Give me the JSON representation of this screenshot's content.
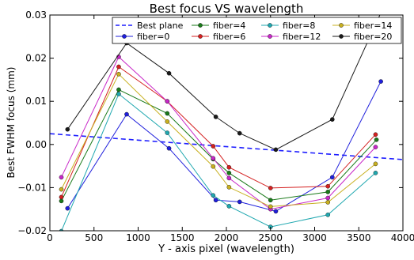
{
  "chart_data": {
    "type": "line",
    "title": "Best focus VS wavelength",
    "xlabel": "Y - axis pixel (wavelength)",
    "ylabel": "Best FWHM focus (mm)",
    "xlim": [
      0,
      4000
    ],
    "ylim": [
      -0.02,
      0.03
    ],
    "xticks": [
      0,
      500,
      1000,
      1500,
      2000,
      2500,
      3000,
      3500,
      4000
    ],
    "xtick_labels": [
      "0",
      "500",
      "1000",
      "1500",
      "2000",
      "2500",
      "3000",
      "3500",
      "4000"
    ],
    "yticks": [
      -0.02,
      -0.01,
      0.0,
      0.01,
      0.02,
      0.03
    ],
    "ytick_labels": [
      "−0.02",
      "−0.01",
      "0.00",
      "0.01",
      "0.02",
      "0.03"
    ],
    "grid": false,
    "legend_position": "top-right",
    "best_plane": {
      "name": "Best plane",
      "color": "#1f1fff",
      "style": "dashed",
      "x": [
        0,
        4000
      ],
      "y": [
        0.0025,
        -0.0035
      ]
    },
    "series": [
      {
        "name": "fiber=0",
        "color": "#1f1fdc",
        "x": [
          200,
          870,
          1350,
          1880,
          2150,
          2560,
          3200,
          3750
        ],
        "y": [
          -0.0148,
          0.007,
          -0.0009,
          -0.0129,
          -0.0133,
          -0.0155,
          -0.0076,
          0.0146
        ]
      },
      {
        "name": "fiber=4",
        "color": "#1a7a1a",
        "x": [
          130,
          780,
          1330,
          1850,
          2030,
          2500,
          3150,
          3700
        ],
        "y": [
          -0.0131,
          0.0127,
          0.0072,
          -0.0034,
          -0.0066,
          -0.0129,
          -0.011,
          0.0011
        ]
      },
      {
        "name": "fiber=6",
        "color": "#d42020",
        "x": [
          130,
          780,
          1330,
          1850,
          2030,
          2500,
          3150,
          3690
        ],
        "y": [
          -0.0122,
          0.018,
          0.01,
          -0.0004,
          -0.0053,
          -0.0101,
          -0.0097,
          0.0023
        ]
      },
      {
        "name": "fiber=8",
        "color": "#20a8b0",
        "x": [
          130,
          780,
          1330,
          1850,
          2030,
          2500,
          3150,
          3690
        ],
        "y": [
          -0.0201,
          0.0117,
          0.0027,
          -0.0118,
          -0.0143,
          -0.0191,
          -0.0163,
          -0.0066
        ]
      },
      {
        "name": "fiber=12",
        "color": "#c828c8",
        "x": [
          130,
          780,
          1330,
          1850,
          2030,
          2500,
          3150,
          3690
        ],
        "y": [
          -0.0076,
          0.0203,
          0.01,
          -0.0032,
          -0.0078,
          -0.015,
          -0.0124,
          -0.0006
        ]
      },
      {
        "name": "fiber=14",
        "color": "#c8b020",
        "x": [
          130,
          780,
          1330,
          1850,
          2030,
          2500,
          3150,
          3690
        ],
        "y": [
          -0.0104,
          0.0163,
          0.0053,
          -0.0051,
          -0.0099,
          -0.0144,
          -0.0134,
          -0.0045
        ]
      },
      {
        "name": "fiber=20",
        "color": "#1a1a1a",
        "x": [
          200,
          870,
          1350,
          1880,
          2150,
          2560,
          3200,
          3750
        ],
        "y": [
          0.0035,
          0.0235,
          0.0165,
          0.0064,
          0.0026,
          -0.0012,
          0.0058,
          0.0305
        ]
      }
    ]
  }
}
